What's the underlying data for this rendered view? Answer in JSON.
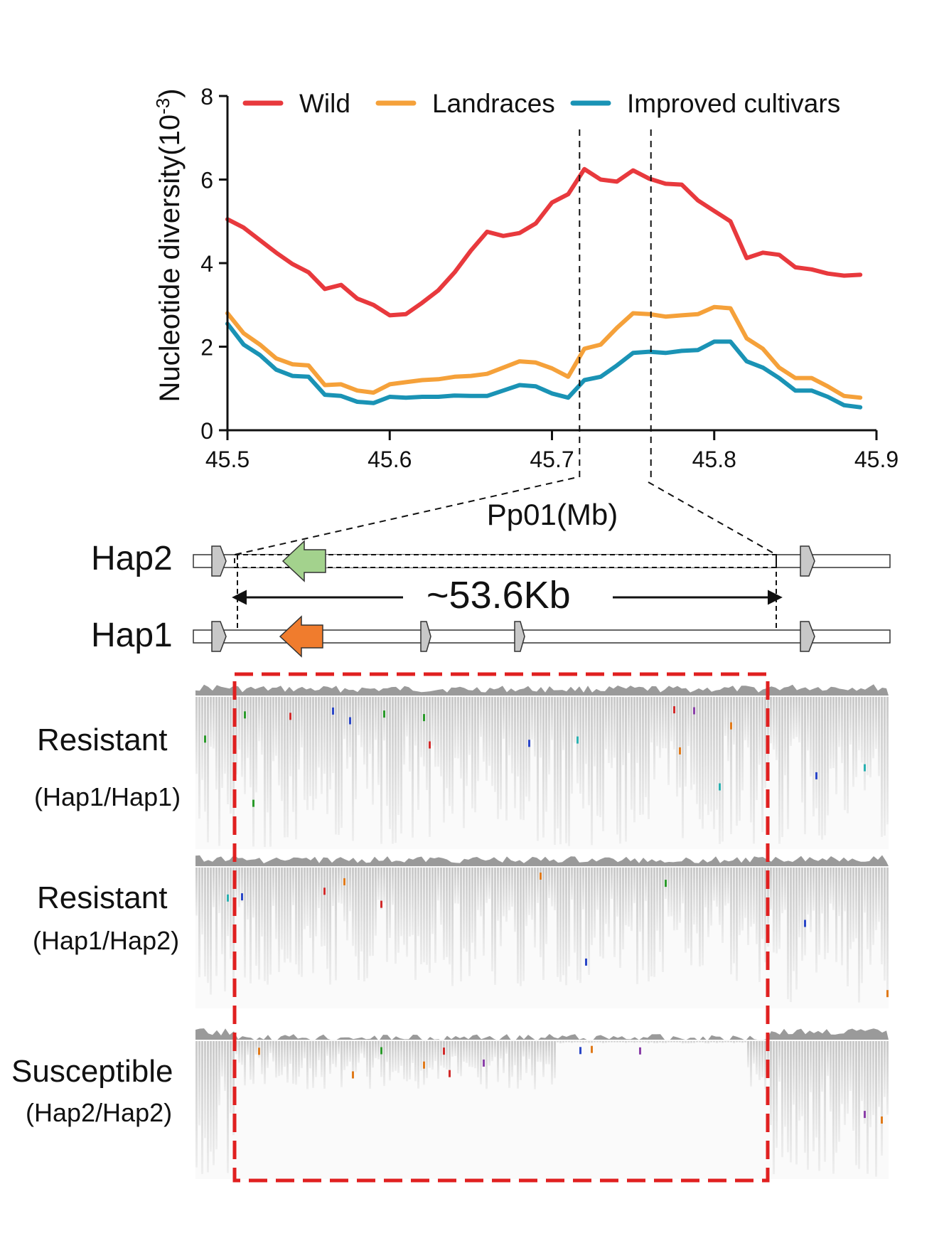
{
  "chart_data": {
    "type": "line",
    "title": "",
    "xlabel": "Pp01(Mb)",
    "ylabel_main": "Nucleotide diversity(10",
    "ylabel_exp": "-3",
    "ylabel_close": ")",
    "xlim": [
      45.5,
      45.9
    ],
    "ylim": [
      0,
      8
    ],
    "x_ticks": [
      45.5,
      45.6,
      45.7,
      45.8,
      45.9
    ],
    "x_tick_labels": [
      "45.5",
      "45.6",
      "45.7",
      "45.8",
      "45.9"
    ],
    "y_ticks": [
      0,
      2,
      4,
      6,
      8
    ],
    "y_tick_labels": [
      "0",
      "2",
      "4",
      "6",
      "8"
    ],
    "legend_position": "top",
    "highlight_region": [
      45.717,
      45.761
    ],
    "x": [
      45.5,
      45.51,
      45.52,
      45.53,
      45.54,
      45.55,
      45.56,
      45.57,
      45.58,
      45.59,
      45.6,
      45.61,
      45.62,
      45.63,
      45.64,
      45.65,
      45.66,
      45.67,
      45.68,
      45.69,
      45.7,
      45.71,
      45.72,
      45.73,
      45.74,
      45.75,
      45.76,
      45.77,
      45.78,
      45.79,
      45.8,
      45.81,
      45.82,
      45.83,
      45.84,
      45.85,
      45.86,
      45.87,
      45.88,
      45.89
    ],
    "series": [
      {
        "name": "Wild",
        "color": "#e8393d",
        "values": [
          5.05,
          4.85,
          4.55,
          4.25,
          3.98,
          3.78,
          3.38,
          3.48,
          3.15,
          3.0,
          2.75,
          2.78,
          3.05,
          3.35,
          3.78,
          4.3,
          4.75,
          4.65,
          4.72,
          4.95,
          5.45,
          5.65,
          6.25,
          6.0,
          5.95,
          6.22,
          6.02,
          5.9,
          5.88,
          5.5,
          5.25,
          5.0,
          4.12,
          4.25,
          4.2,
          3.9,
          3.85,
          3.75,
          3.7,
          3.72
        ]
      },
      {
        "name": "Landraces",
        "color": "#f5a13a",
        "values": [
          2.8,
          2.32,
          2.05,
          1.72,
          1.58,
          1.55,
          1.08,
          1.1,
          0.95,
          0.9,
          1.1,
          1.15,
          1.2,
          1.22,
          1.28,
          1.3,
          1.35,
          1.5,
          1.65,
          1.62,
          1.48,
          1.28,
          1.95,
          2.05,
          2.45,
          2.8,
          2.78,
          2.72,
          2.75,
          2.78,
          2.95,
          2.92,
          2.2,
          1.95,
          1.5,
          1.25,
          1.25,
          1.05,
          0.82,
          0.78
        ]
      },
      {
        "name": "Improved cultivars",
        "color": "#1a93b5",
        "values": [
          2.55,
          2.05,
          1.8,
          1.45,
          1.3,
          1.28,
          0.85,
          0.82,
          0.68,
          0.65,
          0.8,
          0.78,
          0.8,
          0.8,
          0.83,
          0.82,
          0.82,
          0.95,
          1.08,
          1.05,
          0.88,
          0.78,
          1.2,
          1.28,
          1.55,
          1.85,
          1.88,
          1.85,
          1.9,
          1.92,
          2.12,
          2.12,
          1.65,
          1.5,
          1.25,
          0.95,
          0.95,
          0.8,
          0.6,
          0.55
        ]
      }
    ]
  },
  "haplotypes": {
    "hap2_label": "Hap2",
    "hap1_label": "Hap1",
    "span_label": "~53.6Kb",
    "colors": {
      "hap2_gene": "#a3d28d",
      "hap1_gene": "#f07c2d",
      "marker": "#c8c8c8",
      "outline": "#333333"
    }
  },
  "tracks": {
    "samples": [
      {
        "label": "Resistant",
        "genotype": "(Hap1/Hap1)"
      },
      {
        "label": "Resistant",
        "genotype": "(Hap1/Hap2)"
      },
      {
        "label": "Susceptible",
        "genotype": "(Hap2/Hap2)"
      }
    ],
    "box_color": "#e02020"
  }
}
